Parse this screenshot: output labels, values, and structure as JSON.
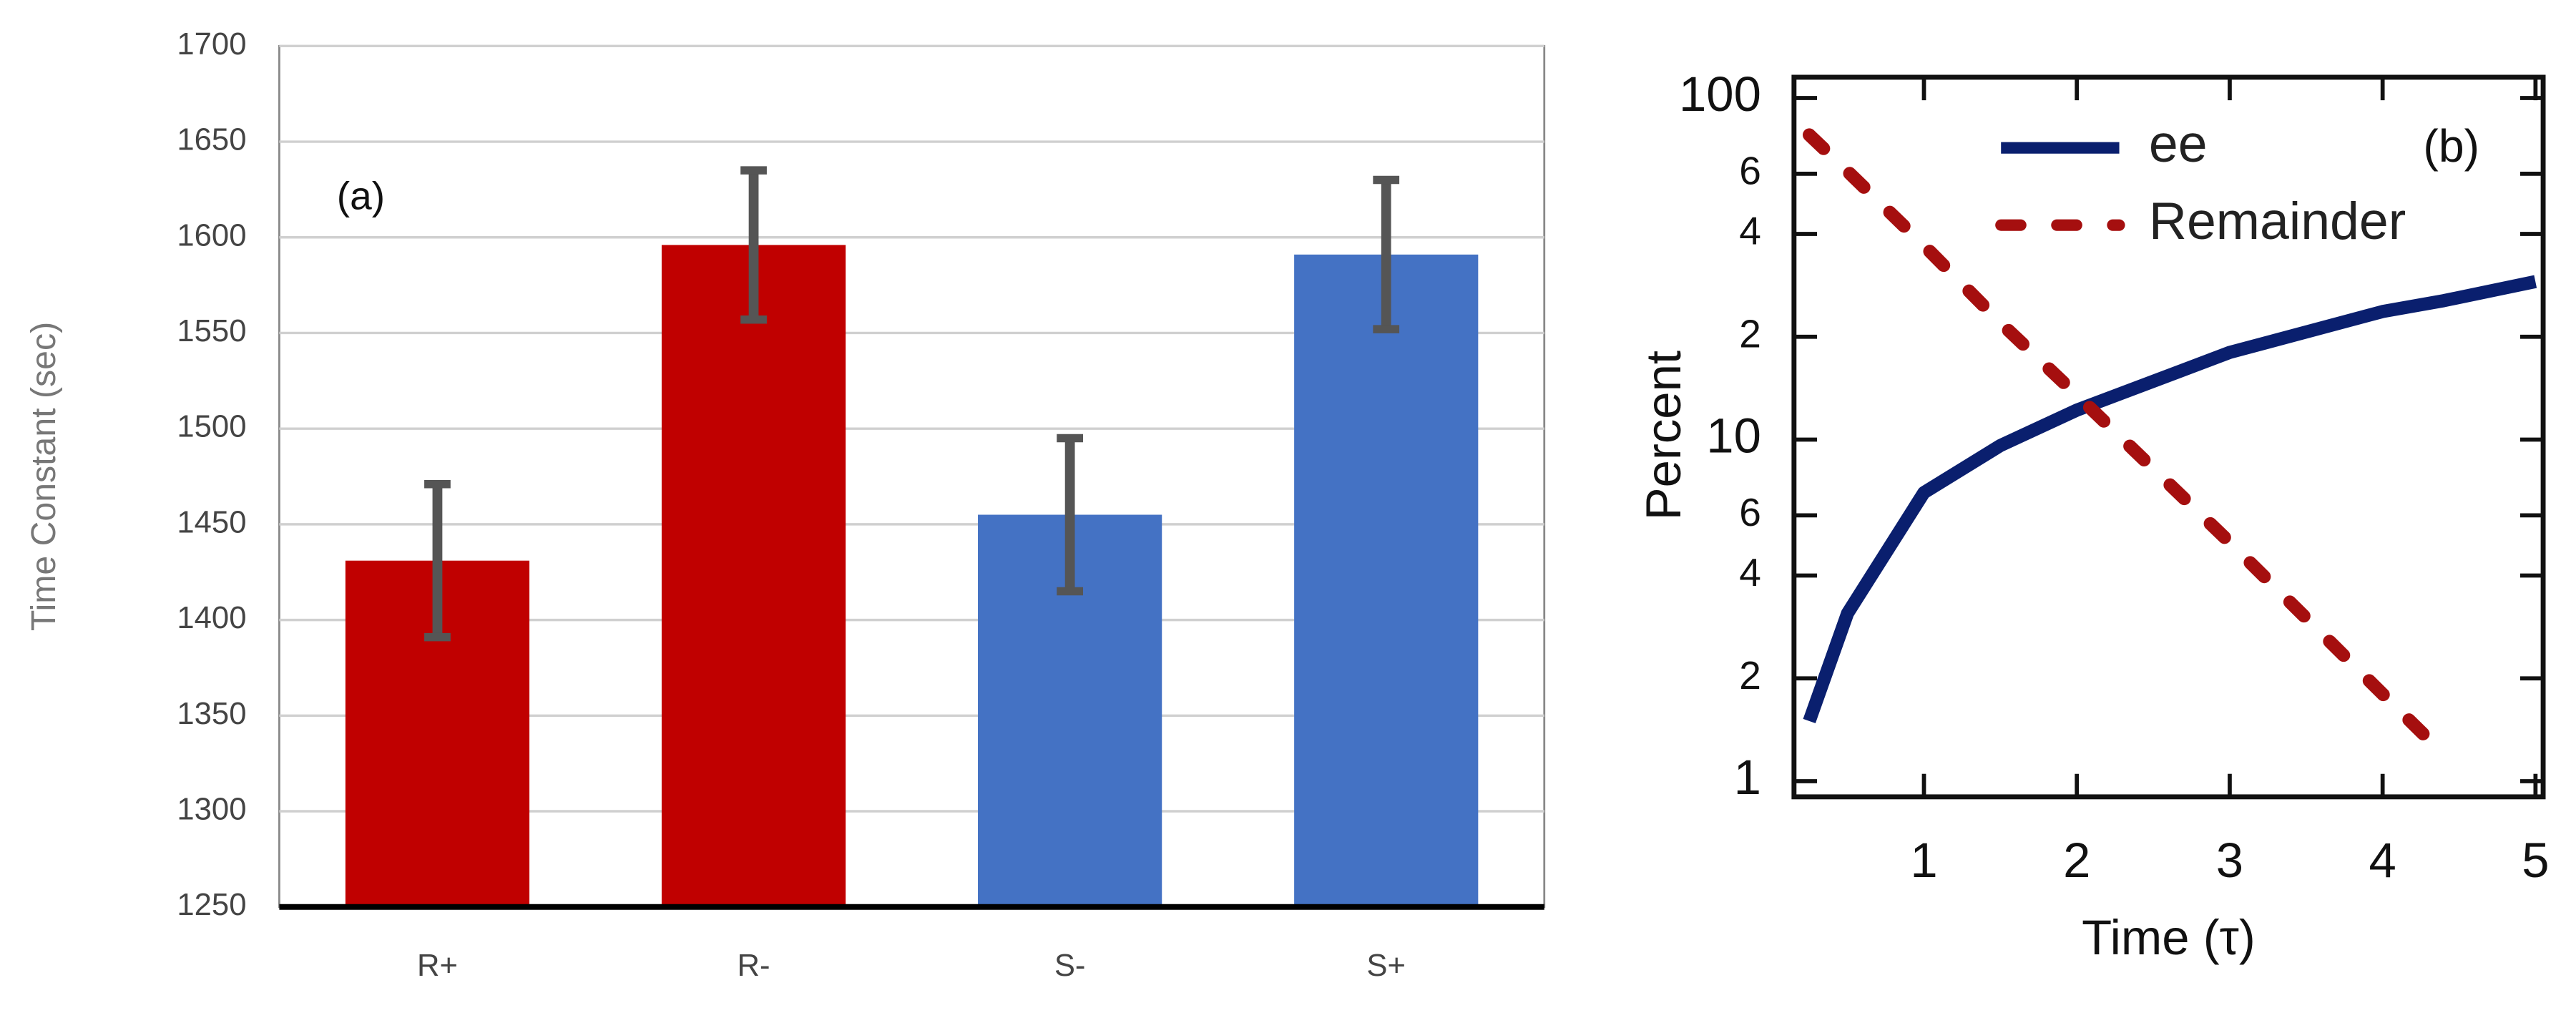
{
  "chart_data": [
    {
      "type": "bar",
      "ylabel": "Time Constant (sec)",
      "annotation": "(a)",
      "categories": [
        "R+",
        "R-",
        "S-",
        "S+"
      ],
      "values": [
        1431,
        1596,
        1455,
        1591
      ],
      "errors": [
        40,
        39,
        40,
        39
      ],
      "colors": [
        "#c00000",
        "#c00000",
        "#4472c4",
        "#4472c4"
      ],
      "ylim": [
        1250,
        1700
      ],
      "yticks": [
        1250,
        1300,
        1350,
        1400,
        1450,
        1500,
        1550,
        1600,
        1650,
        1700
      ],
      "grid": true
    },
    {
      "type": "line",
      "xlabel": "Time (τ)",
      "ylabel": "Percent",
      "annotation": "(b)",
      "log_y": true,
      "legend": "top",
      "x": [
        0.25,
        0.5,
        1,
        1.5,
        2,
        3,
        4,
        4.4,
        5
      ],
      "series": [
        {
          "name": "ee",
          "color": "#0a1f6e",
          "style": "solid",
          "values": [
            1.5,
            3.1,
            7,
            9.6,
            12.2,
            18,
            23.7,
            25.5,
            29
          ]
        },
        {
          "name": "Remainder",
          "color": "#a50f0f",
          "style": "dashed",
          "values": [
            78,
            61,
            37,
            22,
            13.5,
            5,
            1.8,
            1.2,
            null
          ]
        }
      ],
      "xlim": [
        0.15,
        5.05
      ],
      "xticks": [
        1,
        2,
        3,
        4,
        5
      ],
      "ylim": [
        0.9,
        115
      ],
      "yticks": [
        1,
        {
          "value": 2,
          "label": "2"
        },
        {
          "value": 4,
          "label": "4"
        },
        {
          "value": 6,
          "label": "6"
        },
        10,
        {
          "value": 20,
          "label": "2"
        },
        {
          "value": 40,
          "label": "4"
        },
        {
          "value": 60,
          "label": "6"
        },
        100
      ]
    }
  ]
}
